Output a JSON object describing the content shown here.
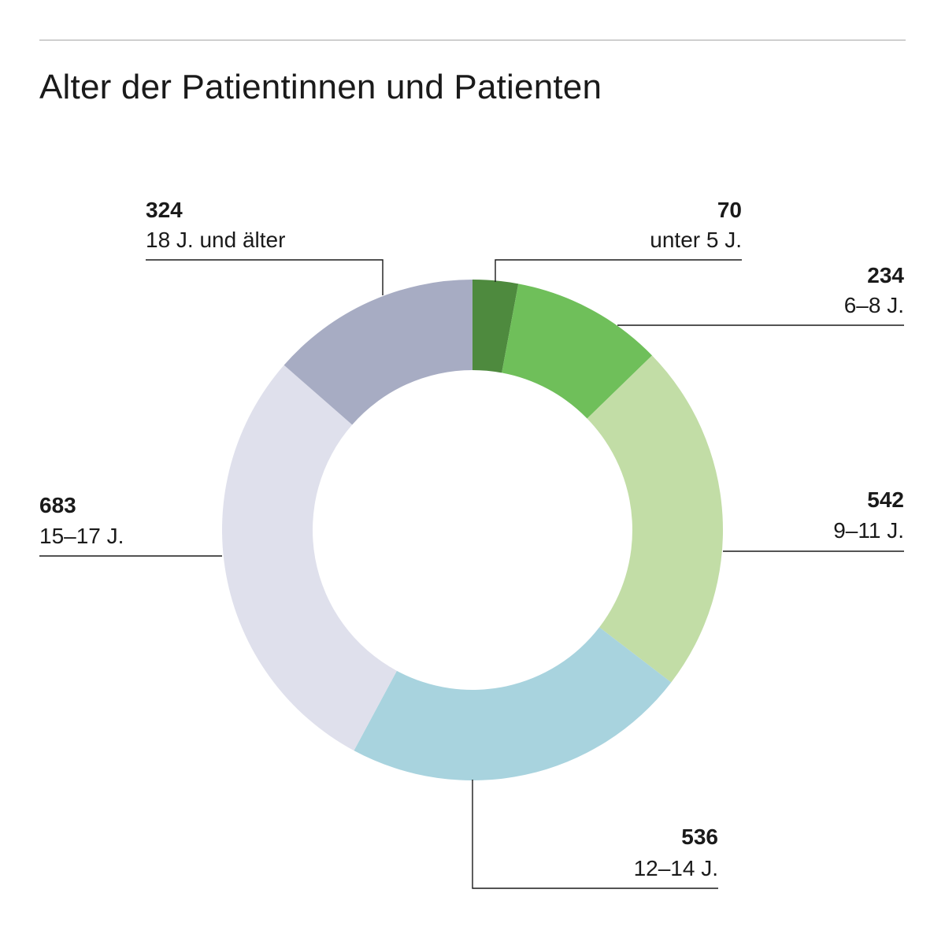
{
  "page": {
    "title": "Alter der Patientinnen und Patienten"
  },
  "chart_data": {
    "type": "pie",
    "donut": true,
    "title": "Alter der Patientinnen und Patienten",
    "categories": [
      "unter 5 J.",
      "6–8 J.",
      "9–11 J.",
      "12–14 J.",
      "15–17 J.",
      "18 J. und älter"
    ],
    "values": [
      70,
      234,
      542,
      536,
      683,
      324
    ],
    "colors": [
      "#4e8a3e",
      "#6fbf5a",
      "#c2dda6",
      "#a8d3de",
      "#dfe0ec",
      "#a7acc3"
    ],
    "legend": "none",
    "slices": [
      {
        "value_label": "70",
        "category": "unter 5 J."
      },
      {
        "value_label": "234",
        "category": "6–8 J."
      },
      {
        "value_label": "542",
        "category": "9–11 J."
      },
      {
        "value_label": "536",
        "category": "12–14 J."
      },
      {
        "value_label": "683",
        "category": "15–17 J."
      },
      {
        "value_label": "324",
        "category": "18 J. und älter"
      }
    ]
  }
}
